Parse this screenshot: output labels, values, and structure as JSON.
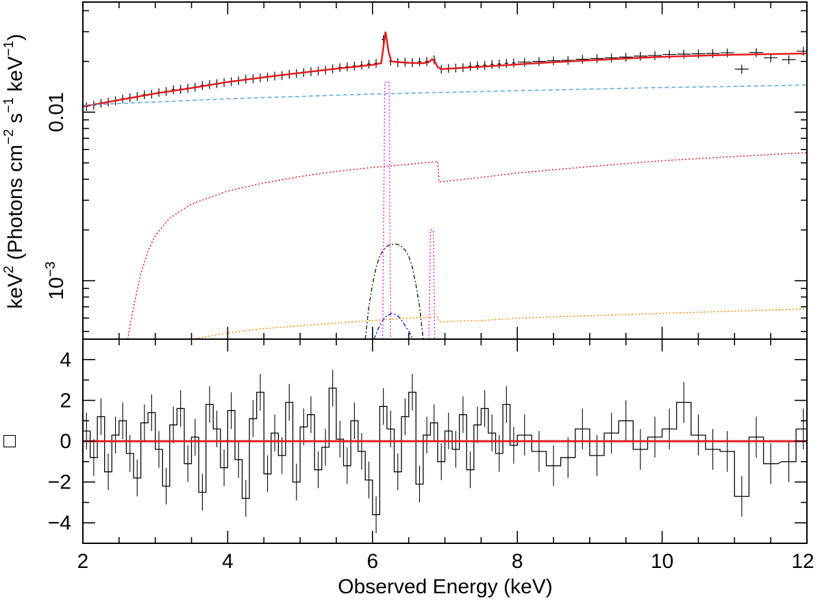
{
  "chart_data": [
    {
      "type": "line",
      "panel": "spectrum",
      "title": "",
      "ylabel": {
        "prefix": "keV",
        "sup1": "2",
        "mid1": " (Photons cm",
        "sup2": "−2",
        "mid2": " s",
        "sup3": "−1",
        "mid3": " keV",
        "sup4": "−1",
        "suffix": ")"
      },
      "xlim": [
        2,
        12
      ],
      "ylim": [
        0.00045,
        0.045
      ],
      "yscale": "log",
      "ytick_labels": [
        {
          "value": 0.01,
          "text": "0.01"
        },
        {
          "value": 0.001,
          "base": "10",
          "exp": "−3"
        }
      ],
      "series": [
        {
          "color": "#000000",
          "style": "data-crosses",
          "x": [
            2.05,
            2.15,
            2.25,
            2.35,
            2.45,
            2.55,
            2.65,
            2.75,
            2.85,
            2.95,
            3.05,
            3.15,
            3.25,
            3.35,
            3.45,
            3.55,
            3.65,
            3.75,
            3.85,
            3.95,
            4.05,
            4.15,
            4.25,
            4.35,
            4.45,
            4.55,
            4.65,
            4.75,
            4.85,
            4.95,
            5.05,
            5.15,
            5.25,
            5.35,
            5.45,
            5.55,
            5.65,
            5.75,
            5.85,
            5.95,
            6.05,
            6.15,
            6.25,
            6.35,
            6.45,
            6.55,
            6.65,
            6.75,
            6.85,
            6.95,
            7.05,
            7.15,
            7.25,
            7.35,
            7.45,
            7.55,
            7.65,
            7.75,
            7.85,
            7.95,
            8.1,
            8.3,
            8.5,
            8.7,
            8.9,
            9.1,
            9.3,
            9.5,
            9.7,
            9.9,
            10.1,
            10.3,
            10.5,
            10.7,
            10.9,
            11.1,
            11.3,
            11.5,
            11.75,
            11.95
          ],
          "y": [
            0.0108,
            0.011,
            0.0113,
            0.0115,
            0.0117,
            0.012,
            0.0122,
            0.0124,
            0.0127,
            0.0128,
            0.0131,
            0.0133,
            0.0136,
            0.0137,
            0.0139,
            0.0141,
            0.0144,
            0.0146,
            0.0148,
            0.015,
            0.0152,
            0.0154,
            0.0157,
            0.0158,
            0.016,
            0.0162,
            0.0164,
            0.0165,
            0.0168,
            0.017,
            0.0172,
            0.0174,
            0.0176,
            0.0178,
            0.0181,
            0.0184,
            0.0186,
            0.0188,
            0.019,
            0.0193,
            0.0195,
            0.027,
            0.0201,
            0.0197,
            0.0198,
            0.0197,
            0.0199,
            0.02,
            0.0205,
            0.018,
            0.0182,
            0.0183,
            0.0184,
            0.0187,
            0.0189,
            0.019,
            0.0192,
            0.0193,
            0.0195,
            0.0196,
            0.0198,
            0.02,
            0.0202,
            0.0203,
            0.0206,
            0.0208,
            0.021,
            0.0212,
            0.0215,
            0.0217,
            0.022,
            0.0221,
            0.0222,
            0.0223,
            0.0225,
            0.018,
            0.0226,
            0.021,
            0.0205,
            0.023
          ]
        },
        {
          "color": "#e41a1c",
          "style": "solid-bold",
          "x": [
            2,
            2.5,
            3,
            3.5,
            4,
            4.5,
            5,
            5.5,
            6,
            6.12,
            6.18,
            6.22,
            6.26,
            6.32,
            6.5,
            6.7,
            6.78,
            6.82,
            6.86,
            6.9,
            6.95,
            7.05,
            7.5,
            8,
            8.5,
            9,
            9.5,
            10,
            10.5,
            11,
            11.5,
            12
          ],
          "y": [
            0.0108,
            0.0118,
            0.0129,
            0.0139,
            0.0151,
            0.0161,
            0.0171,
            0.0181,
            0.0191,
            0.0195,
            0.03,
            0.023,
            0.02,
            0.0199,
            0.0196,
            0.0195,
            0.0198,
            0.0206,
            0.02,
            0.0185,
            0.018,
            0.0181,
            0.0186,
            0.0192,
            0.0198,
            0.0203,
            0.0208,
            0.0213,
            0.0216,
            0.0219,
            0.0221,
            0.0223
          ]
        },
        {
          "color": "#5aa9e0",
          "style": "dashed",
          "x": [
            2,
            3,
            4,
            5,
            6,
            7,
            8,
            9,
            10,
            11,
            12
          ],
          "y": [
            0.011,
            0.0115,
            0.012,
            0.0124,
            0.0128,
            0.0131,
            0.0134,
            0.0137,
            0.014,
            0.0142,
            0.0145
          ]
        },
        {
          "color": "#e41a1c",
          "style": "dotted",
          "x": [
            2.62,
            2.7,
            2.8,
            2.9,
            3,
            3.2,
            3.5,
            4,
            4.5,
            5,
            5.5,
            6,
            6.5,
            6.9,
            6.92,
            7.5,
            8,
            8.5,
            9,
            9.5,
            10,
            10.5,
            11,
            11.5,
            12
          ],
          "y": [
            0.00045,
            0.0007,
            0.0011,
            0.0015,
            0.00185,
            0.00235,
            0.00285,
            0.0034,
            0.0038,
            0.00415,
            0.00445,
            0.0047,
            0.0049,
            0.0051,
            0.00385,
            0.0041,
            0.00435,
            0.00455,
            0.00475,
            0.00495,
            0.00515,
            0.0053,
            0.00545,
            0.0056,
            0.00575
          ]
        },
        {
          "color": "#ff8c00",
          "style": "dotted",
          "x": [
            3.5,
            4,
            4.5,
            5,
            5.5,
            6,
            6.5,
            6.9,
            6.92,
            7.5,
            8,
            9,
            10,
            11,
            12
          ],
          "y": [
            0.00045,
            0.00049,
            0.00052,
            0.00054,
            0.00056,
            0.00058,
            0.0006,
            0.00061,
            0.00057,
            0.00058,
            0.0006,
            0.00062,
            0.00064,
            0.00066,
            0.00068
          ]
        },
        {
          "color": "#333333",
          "style": "dash-dot",
          "x": [
            5.9,
            5.95,
            6.0,
            6.05,
            6.1,
            6.15,
            6.2,
            6.25,
            6.3,
            6.35,
            6.4,
            6.45,
            6.5,
            6.55,
            6.6,
            6.65,
            6.7
          ],
          "y": [
            0.00045,
            0.0007,
            0.00095,
            0.0012,
            0.0014,
            0.00152,
            0.0016,
            0.00164,
            0.00165,
            0.00164,
            0.0016,
            0.00152,
            0.0014,
            0.0012,
            0.00095,
            0.0007,
            0.00045
          ]
        },
        {
          "color": "#1f2fd6",
          "style": "dash-dot",
          "x": [
            6.02,
            6.08,
            6.14,
            6.2,
            6.26,
            6.32,
            6.38,
            6.44,
            6.5,
            6.56
          ],
          "y": [
            0.00045,
            0.00052,
            0.00058,
            0.00062,
            0.00064,
            0.00063,
            0.0006,
            0.00055,
            0.0005,
            0.00045
          ]
        },
        {
          "color": "#ee33ee",
          "style": "dotted",
          "x": [
            6.14,
            6.17,
            6.2,
            6.23,
            6.25
          ],
          "y": [
            0.00045,
            0.015,
            0.015,
            0.015,
            0.00045
          ]
        },
        {
          "color": "#ee33ee",
          "style": "dotted",
          "x": [
            6.78,
            6.8,
            6.82,
            6.84,
            6.86
          ],
          "y": [
            0.00045,
            0.002,
            0.002,
            0.002,
            0.00045
          ]
        }
      ]
    },
    {
      "type": "line",
      "panel": "residuals",
      "ylabel_symbol": "□",
      "xlabel": "Observed Energy (keV)",
      "xlim": [
        2,
        12
      ],
      "ylim": [
        -5,
        5
      ],
      "x_ticks": [
        2,
        4,
        6,
        8,
        10,
        12
      ],
      "x_tick_labels": [
        "2",
        "4",
        "6",
        "8",
        "10",
        "12"
      ],
      "y_ticks": [
        -4,
        -2,
        0,
        2,
        4
      ],
      "y_tick_labels": [
        "−4",
        "−2",
        "0",
        "2",
        "4"
      ],
      "residuals": {
        "x": [
          2.05,
          2.15,
          2.25,
          2.35,
          2.45,
          2.55,
          2.65,
          2.75,
          2.85,
          2.95,
          3.05,
          3.15,
          3.25,
          3.35,
          3.45,
          3.55,
          3.65,
          3.75,
          3.85,
          3.95,
          4.05,
          4.15,
          4.25,
          4.35,
          4.45,
          4.55,
          4.65,
          4.75,
          4.85,
          4.95,
          5.05,
          5.15,
          5.25,
          5.35,
          5.45,
          5.55,
          5.65,
          5.75,
          5.85,
          5.95,
          6.05,
          6.15,
          6.25,
          6.35,
          6.45,
          6.55,
          6.65,
          6.75,
          6.85,
          6.95,
          7.05,
          7.15,
          7.25,
          7.35,
          7.45,
          7.55,
          7.65,
          7.75,
          7.85,
          7.95,
          8.1,
          8.3,
          8.5,
          8.7,
          8.9,
          9.1,
          9.3,
          9.5,
          9.7,
          9.9,
          10.1,
          10.3,
          10.5,
          10.7,
          10.9,
          11.1,
          11.3,
          11.5,
          11.75,
          11.95
        ],
        "y": [
          0.5,
          -0.8,
          1.2,
          -1.5,
          0.3,
          1.0,
          -0.6,
          -1.8,
          0.9,
          1.4,
          -0.4,
          -2.2,
          0.8,
          1.6,
          -1.1,
          0.2,
          -2.5,
          1.8,
          0.6,
          -1.3,
          1.5,
          -0.9,
          -2.8,
          1.1,
          2.4,
          -1.6,
          0.4,
          -0.7,
          1.9,
          -2.0,
          0.7,
          1.3,
          -1.4,
          -0.3,
          2.6,
          0.1,
          -1.2,
          1.0,
          -0.5,
          -1.9,
          -3.6,
          1.7,
          0.6,
          -1.5,
          1.2,
          2.4,
          -2.1,
          0.3,
          0.9,
          -1.0,
          0.5,
          -0.4,
          1.3,
          -1.4,
          0.8,
          1.6,
          0.4,
          -0.6,
          1.8,
          -0.2,
          0.3,
          -0.5,
          -1.2,
          -0.8,
          0.6,
          -0.7,
          0.4,
          1.0,
          -0.4,
          0.2,
          0.6,
          1.9,
          0.3,
          -0.4,
          -0.5,
          -2.7,
          0.2,
          -1.1,
          -1.0,
          0.6
        ],
        "err": [
          0.9,
          0.9,
          0.9,
          0.9,
          0.9,
          0.9,
          0.9,
          0.9,
          0.9,
          0.9,
          0.9,
          0.9,
          0.9,
          0.9,
          0.9,
          0.9,
          0.9,
          0.9,
          0.9,
          0.9,
          0.9,
          0.9,
          0.9,
          0.9,
          0.9,
          0.9,
          0.9,
          0.9,
          0.9,
          0.9,
          0.9,
          0.9,
          0.9,
          0.9,
          0.9,
          0.9,
          0.9,
          0.9,
          0.9,
          0.9,
          0.9,
          0.9,
          0.9,
          0.9,
          0.9,
          0.9,
          0.9,
          0.9,
          0.9,
          0.9,
          0.9,
          0.9,
          0.9,
          0.9,
          0.9,
          0.9,
          0.9,
          0.9,
          0.9,
          0.9,
          1.0,
          1.0,
          1.0,
          1.0,
          1.0,
          1.0,
          1.0,
          1.0,
          1.0,
          1.0,
          1.0,
          1.0,
          1.0,
          1.0,
          1.0,
          1.0,
          1.0,
          1.0,
          1.0,
          1.0
        ]
      },
      "zero_line_color": "#e41a1c"
    }
  ]
}
